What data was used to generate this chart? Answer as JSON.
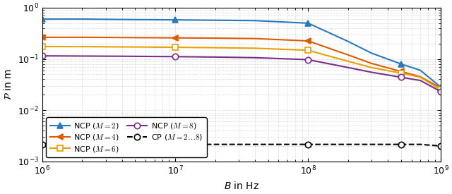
{
  "xlabel": "$B$ in Hz",
  "ylabel": "$\\mathcal{P}$ in m",
  "series": [
    {
      "label": "NCP ($M = 2$)",
      "color": "#2878be",
      "marker": "^",
      "marker_filled": true,
      "linestyle": "-",
      "x": [
        1000000.0,
        2000000.0,
        4000000.0,
        10000000.0,
        20000000.0,
        40000000.0,
        100000000.0,
        200000000.0,
        300000000.0,
        500000000.0,
        700000000.0,
        1000000000.0
      ],
      "y": [
        0.6,
        0.6,
        0.59,
        0.58,
        0.57,
        0.56,
        0.5,
        0.22,
        0.13,
        0.08,
        0.06,
        0.028
      ]
    },
    {
      "label": "NCP ($M = 4$)",
      "color": "#e05a00",
      "marker": "<",
      "marker_filled": true,
      "linestyle": "-",
      "x": [
        1000000.0,
        2000000.0,
        4000000.0,
        10000000.0,
        20000000.0,
        40000000.0,
        100000000.0,
        200000000.0,
        300000000.0,
        500000000.0,
        700000000.0,
        1000000000.0
      ],
      "y": [
        0.265,
        0.265,
        0.262,
        0.258,
        0.255,
        0.25,
        0.225,
        0.12,
        0.082,
        0.057,
        0.045,
        0.027
      ]
    },
    {
      "label": "NCP ($M = 6$)",
      "color": "#e8a000",
      "marker": "s",
      "marker_filled": false,
      "linestyle": "-",
      "x": [
        1000000.0,
        2000000.0,
        4000000.0,
        10000000.0,
        20000000.0,
        40000000.0,
        100000000.0,
        200000000.0,
        300000000.0,
        500000000.0,
        700000000.0,
        1000000000.0
      ],
      "y": [
        0.175,
        0.174,
        0.172,
        0.169,
        0.166,
        0.162,
        0.148,
        0.09,
        0.068,
        0.053,
        0.044,
        0.025
      ]
    },
    {
      "label": "NCP ($M = 8$)",
      "color": "#7b2d8b",
      "marker": "o",
      "marker_filled": false,
      "linestyle": "-",
      "x": [
        1000000.0,
        2000000.0,
        4000000.0,
        10000000.0,
        20000000.0,
        40000000.0,
        100000000.0,
        200000000.0,
        300000000.0,
        500000000.0,
        700000000.0,
        1000000000.0
      ],
      "y": [
        0.115,
        0.114,
        0.113,
        0.111,
        0.109,
        0.106,
        0.097,
        0.068,
        0.055,
        0.044,
        0.038,
        0.023
      ]
    },
    {
      "label": "CP ($M = 2 \\ldots 8$)",
      "color": "#000000",
      "marker": "o",
      "marker_filled": false,
      "linestyle": "--",
      "x": [
        1000000.0,
        2000000.0,
        4000000.0,
        10000000.0,
        20000000.0,
        40000000.0,
        100000000.0,
        200000000.0,
        300000000.0,
        500000000.0,
        700000000.0,
        1000000000.0
      ],
      "y": [
        0.00215,
        0.00215,
        0.00215,
        0.00215,
        0.00215,
        0.00215,
        0.00215,
        0.00215,
        0.00215,
        0.00215,
        0.00215,
        0.002
      ]
    }
  ],
  "marker_every": [
    0,
    3,
    6,
    9,
    11
  ],
  "marker_size": 6,
  "linewidth": 1.5,
  "figsize": [
    6.4,
    2.75
  ],
  "dpi": 100
}
